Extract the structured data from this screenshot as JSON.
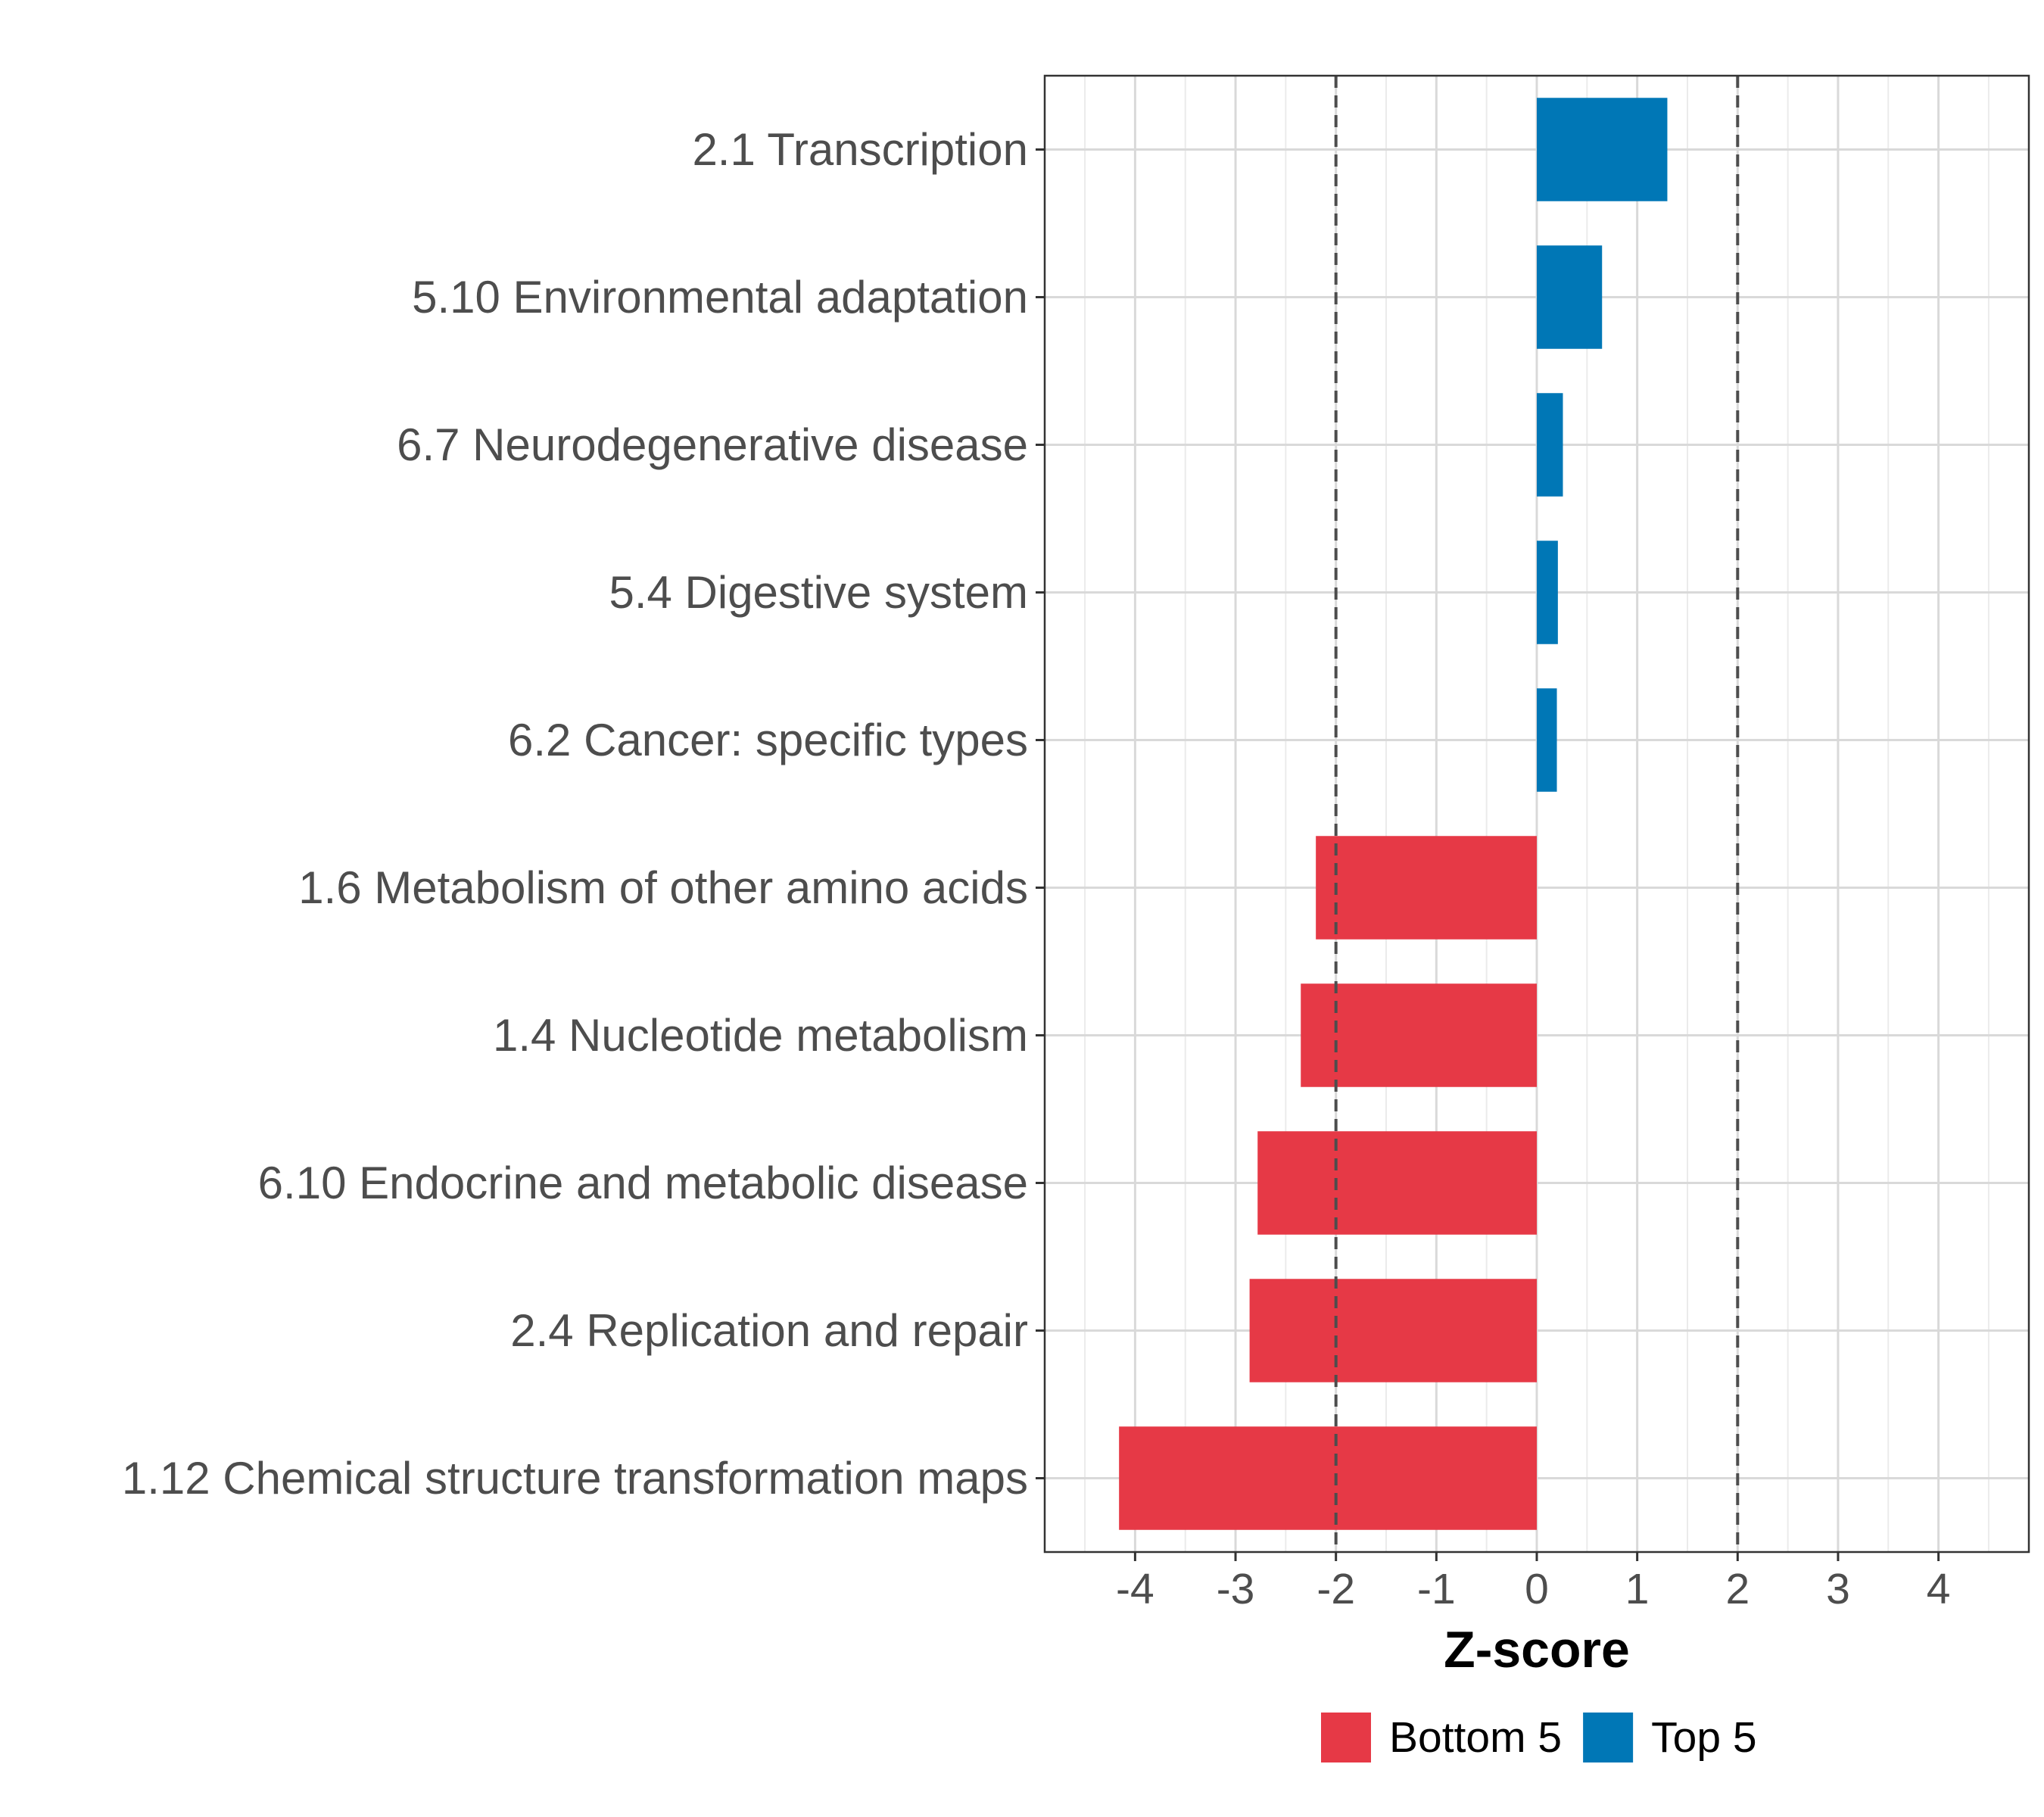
{
  "chart_data": {
    "type": "bar",
    "orientation": "horizontal",
    "title": "",
    "xlabel": "Z-score",
    "ylabel": "",
    "xlim": [
      -4.9,
      4.9
    ],
    "xticks": [
      "-4",
      "-3",
      "-2",
      "-1",
      "0",
      "1",
      "2",
      "3",
      "4"
    ],
    "xtick_values": [
      -4,
      -3,
      -2,
      -1,
      0,
      1,
      2,
      3,
      4
    ],
    "reference_lines": [
      -2,
      2
    ],
    "grid": true,
    "legend_position": "bottom",
    "categories": [
      "2.1 Transcription",
      "5.10 Environmental adaptation",
      "6.7 Neurodegenerative disease",
      "5.4 Digestive system",
      "6.2 Cancer: specific types",
      "1.6 Metabolism of other amino acids",
      "1.4 Nucleotide metabolism",
      "6.10 Endocrine and metabolic disease",
      "2.4 Replication and repair",
      "1.12 Chemical structure transformation maps"
    ],
    "values": [
      1.3,
      0.65,
      0.26,
      0.21,
      0.2,
      -2.2,
      -2.35,
      -2.78,
      -2.86,
      -4.16
    ],
    "groups": [
      "Top 5",
      "Top 5",
      "Top 5",
      "Top 5",
      "Top 5",
      "Bottom 5",
      "Bottom 5",
      "Bottom 5",
      "Bottom 5",
      "Bottom 5"
    ],
    "legend": [
      {
        "name": "Bottom 5",
        "color": "#e63946"
      },
      {
        "name": "Top 5",
        "color": "#0077b6"
      }
    ]
  }
}
